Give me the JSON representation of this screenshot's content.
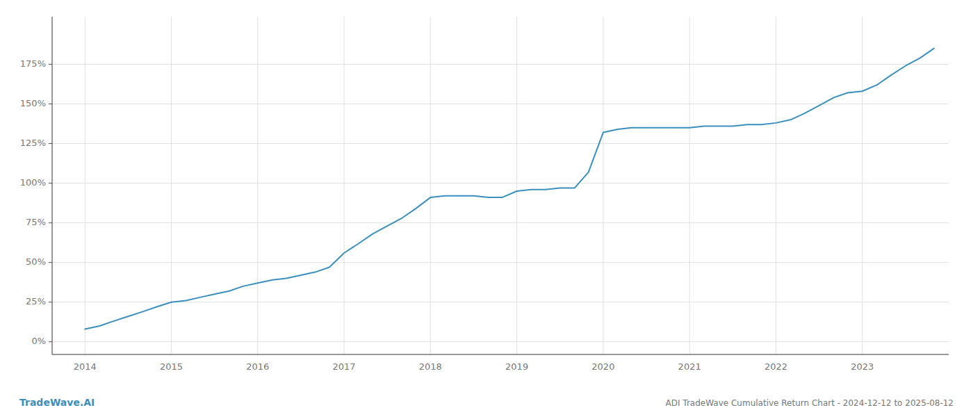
{
  "chart_data": {
    "type": "line",
    "title": "ADI TradeWave Cumulative Return Chart - 2024-12-12 to 2025-08-12",
    "annotations": [
      "TradeWave.AI"
    ],
    "color": "#3a8fbe",
    "grid": true,
    "x": [
      2014.0,
      2014.17,
      2014.33,
      2014.5,
      2014.67,
      2014.83,
      2015.0,
      2015.17,
      2015.33,
      2015.5,
      2015.67,
      2015.83,
      2016.0,
      2016.17,
      2016.33,
      2016.5,
      2016.67,
      2016.83,
      2017.0,
      2017.17,
      2017.33,
      2017.5,
      2017.67,
      2017.83,
      2018.0,
      2018.17,
      2018.33,
      2018.5,
      2018.67,
      2018.83,
      2019.0,
      2019.17,
      2019.33,
      2019.5,
      2019.67,
      2019.83,
      2020.0,
      2020.17,
      2020.33,
      2020.5,
      2020.67,
      2020.83,
      2021.0,
      2021.17,
      2021.33,
      2021.5,
      2021.67,
      2021.83,
      2022.0,
      2022.17,
      2022.33,
      2022.5,
      2022.67,
      2022.83,
      2023.0,
      2023.17,
      2023.33,
      2023.5,
      2023.67,
      2023.83
    ],
    "values": [
      8,
      10,
      13,
      16,
      19,
      22,
      25,
      26,
      28,
      30,
      32,
      35,
      37,
      39,
      40,
      42,
      44,
      47,
      56,
      62,
      68,
      73,
      78,
      84,
      91,
      92,
      92,
      92,
      91,
      91,
      95,
      96,
      96,
      97,
      97,
      107,
      132,
      134,
      135,
      135,
      135,
      135,
      135,
      136,
      136,
      136,
      137,
      137,
      138,
      140,
      144,
      149,
      154,
      157,
      158,
      162,
      168,
      174,
      179,
      185
    ],
    "xlim": [
      2013.62,
      2024.0
    ],
    "xticks": [
      2014,
      2015,
      2016,
      2017,
      2018,
      2019,
      2020,
      2021,
      2022,
      2023
    ],
    "ylim": [
      -8,
      205
    ],
    "yticks": [
      {
        "value": 0,
        "label": "0%"
      },
      {
        "value": 25,
        "label": "25%"
      },
      {
        "value": 50,
        "label": "50%"
      },
      {
        "value": 75,
        "label": "75%"
      },
      {
        "value": 100,
        "label": "100%"
      },
      {
        "value": 125,
        "label": "125%"
      },
      {
        "value": 150,
        "label": "150%"
      },
      {
        "value": 175,
        "label": "175%"
      }
    ]
  }
}
